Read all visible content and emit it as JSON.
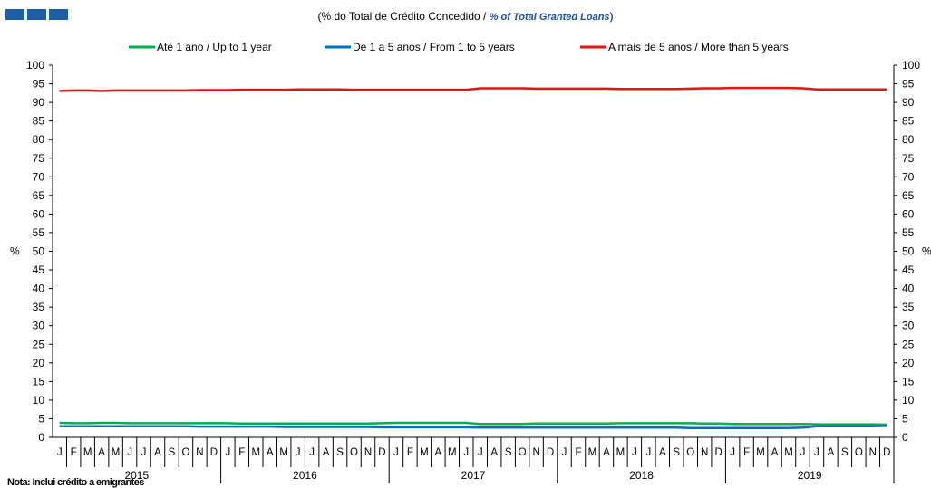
{
  "header": {
    "logo_icon": "blue-bars-logo-icon",
    "title_pt": "(% do Total de Crédito Concedido / ",
    "title_en": "% of Total Granted Loans",
    "title_end": ")"
  },
  "note": "Nota: Inclui crédito a emigrantes",
  "chart_data": {
    "type": "line",
    "ylabel_left": "%",
    "ylabel_right": "%",
    "ylim": [
      0,
      100
    ],
    "yticks": [
      0,
      5,
      10,
      15,
      20,
      25,
      30,
      35,
      40,
      45,
      50,
      55,
      60,
      65,
      70,
      75,
      80,
      85,
      90,
      95,
      100
    ],
    "month_labels": [
      "J",
      "F",
      "M",
      "A",
      "M",
      "J",
      "J",
      "A",
      "S",
      "O",
      "N",
      "D"
    ],
    "years": [
      "2015",
      "2016",
      "2017",
      "2018",
      "2019"
    ],
    "legend_position": "top",
    "grid": false,
    "series": [
      {
        "name": "Até 1 ano / Up to 1 year",
        "color": "#00b050",
        "values": [
          3.9,
          3.8,
          3.8,
          3.9,
          3.9,
          3.8,
          3.8,
          3.8,
          3.8,
          3.8,
          3.8,
          3.8,
          3.8,
          3.7,
          3.7,
          3.7,
          3.7,
          3.7,
          3.7,
          3.7,
          3.7,
          3.7,
          3.7,
          3.8,
          3.9,
          3.9,
          3.9,
          3.9,
          3.9,
          3.9,
          3.6,
          3.6,
          3.6,
          3.6,
          3.7,
          3.7,
          3.7,
          3.7,
          3.7,
          3.7,
          3.8,
          3.8,
          3.8,
          3.8,
          3.8,
          3.8,
          3.7,
          3.7,
          3.6,
          3.6,
          3.6,
          3.6,
          3.6,
          3.6,
          3.5,
          3.5,
          3.5,
          3.5,
          3.5,
          3.4
        ]
      },
      {
        "name": "De 1 a 5 anos / From 1 to 5 years",
        "color": "#0070c0",
        "values": [
          3.0,
          3.0,
          3.0,
          3.0,
          3.0,
          3.0,
          3.0,
          3.0,
          3.0,
          3.0,
          2.9,
          2.9,
          2.9,
          2.9,
          2.9,
          2.9,
          2.8,
          2.8,
          2.8,
          2.8,
          2.8,
          2.8,
          2.8,
          2.7,
          2.7,
          2.7,
          2.7,
          2.7,
          2.7,
          2.7,
          2.6,
          2.6,
          2.6,
          2.6,
          2.6,
          2.6,
          2.6,
          2.6,
          2.6,
          2.6,
          2.6,
          2.6,
          2.6,
          2.6,
          2.6,
          2.5,
          2.5,
          2.5,
          2.5,
          2.5,
          2.5,
          2.5,
          2.5,
          2.6,
          3.0,
          3.0,
          3.0,
          3.0,
          3.0,
          3.1
        ]
      },
      {
        "name": "A mais de 5 anos / More than 5 years",
        "color": "#e81010",
        "values": [
          93.1,
          93.2,
          93.2,
          93.1,
          93.2,
          93.2,
          93.2,
          93.2,
          93.2,
          93.2,
          93.3,
          93.3,
          93.3,
          93.4,
          93.4,
          93.4,
          93.4,
          93.5,
          93.5,
          93.5,
          93.5,
          93.4,
          93.4,
          93.4,
          93.4,
          93.4,
          93.4,
          93.4,
          93.4,
          93.4,
          93.8,
          93.8,
          93.8,
          93.8,
          93.7,
          93.7,
          93.7,
          93.7,
          93.7,
          93.7,
          93.6,
          93.6,
          93.6,
          93.6,
          93.6,
          93.7,
          93.8,
          93.8,
          93.9,
          93.9,
          93.9,
          93.9,
          93.9,
          93.8,
          93.5,
          93.5,
          93.5,
          93.5,
          93.5,
          93.5
        ]
      }
    ]
  }
}
